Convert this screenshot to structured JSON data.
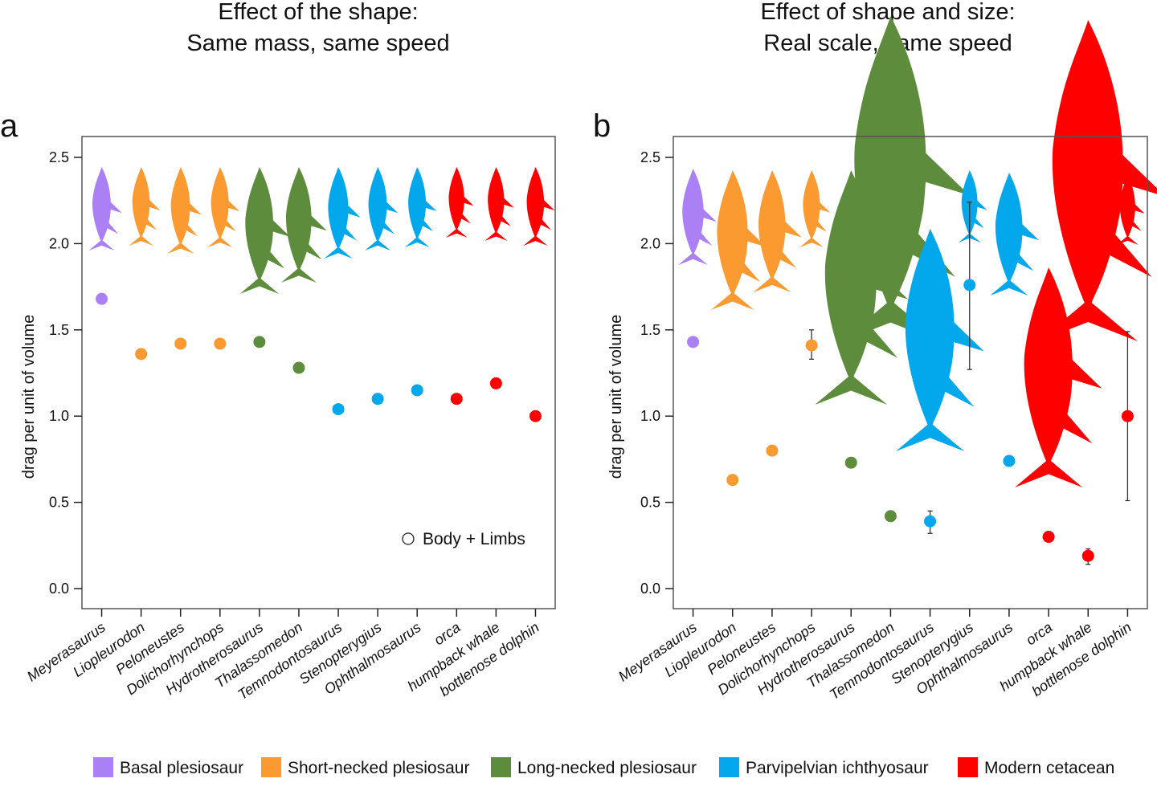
{
  "legend": [
    {
      "label": "Basal plesiosaur",
      "color": "#ab80f5"
    },
    {
      "label": "Short-necked plesiosaur",
      "color": "#fb9a31"
    },
    {
      "label": "Long-necked plesiosaur",
      "color": "#5d8c3c"
    },
    {
      "label": "Parvipelvian ichthyosaur",
      "color": "#02a7ec"
    },
    {
      "label": "Modern cetacean",
      "color": "#fe0000"
    }
  ],
  "chart_data": [
    {
      "type": "scatter",
      "panel_label": "a",
      "title_lines": [
        "Effect of the shape:",
        "Same mass, same speed"
      ],
      "ylabel": "drag per unit of volume",
      "ylim": [
        -0.12,
        2.62
      ],
      "yticks": [
        "0.0",
        "0.5",
        "1.0",
        "1.5",
        "2.0",
        "2.5"
      ],
      "annotation": "Body + Limbs",
      "categories": [
        "Meyerasaurus",
        "Liopleurodon",
        "Peloneustes",
        "Dolichorhynchops",
        "Hydrotherosaurus",
        "Thalassomedon",
        "Temnodontosaurus",
        "Stenopterygius",
        "Ophthalmosaurus",
        "orca",
        "humpback whale",
        "bottlenose dolphin"
      ],
      "groups": [
        0,
        1,
        1,
        1,
        2,
        2,
        3,
        3,
        3,
        4,
        4,
        4
      ],
      "values": [
        1.68,
        1.36,
        1.42,
        1.42,
        1.43,
        1.28,
        1.04,
        1.1,
        1.15,
        1.1,
        1.19,
        1.0
      ]
    },
    {
      "type": "scatter",
      "panel_label": "b",
      "title_lines": [
        "Effect of shape and size:",
        "Real scale, same speed"
      ],
      "ylabel": "drag per unit of volume",
      "ylim": [
        -0.12,
        2.62
      ],
      "yticks": [
        "0.0",
        "0.5",
        "1.0",
        "1.5",
        "2.0",
        "2.5"
      ],
      "categories": [
        "Meyerasaurus",
        "Liopleurodon",
        "Peloneustes",
        "Dolichorhynchops",
        "Hydrotherosaurus",
        "Thalassomedon",
        "Temnodontosaurus",
        "Stenopterygius",
        "Ophthalmosaurus",
        "orca",
        "humpback whale",
        "bottlenose dolphin"
      ],
      "groups": [
        0,
        1,
        1,
        1,
        2,
        2,
        3,
        3,
        3,
        4,
        4,
        4
      ],
      "values": [
        1.43,
        0.63,
        0.8,
        1.41,
        0.73,
        0.42,
        0.39,
        1.76,
        0.74,
        0.3,
        0.19,
        1.0
      ],
      "error_low": [
        null,
        null,
        null,
        1.33,
        null,
        null,
        0.32,
        1.27,
        null,
        null,
        0.14,
        0.51
      ],
      "error_high": [
        null,
        null,
        null,
        1.5,
        null,
        null,
        0.45,
        2.24,
        null,
        null,
        0.23,
        1.49
      ]
    }
  ]
}
